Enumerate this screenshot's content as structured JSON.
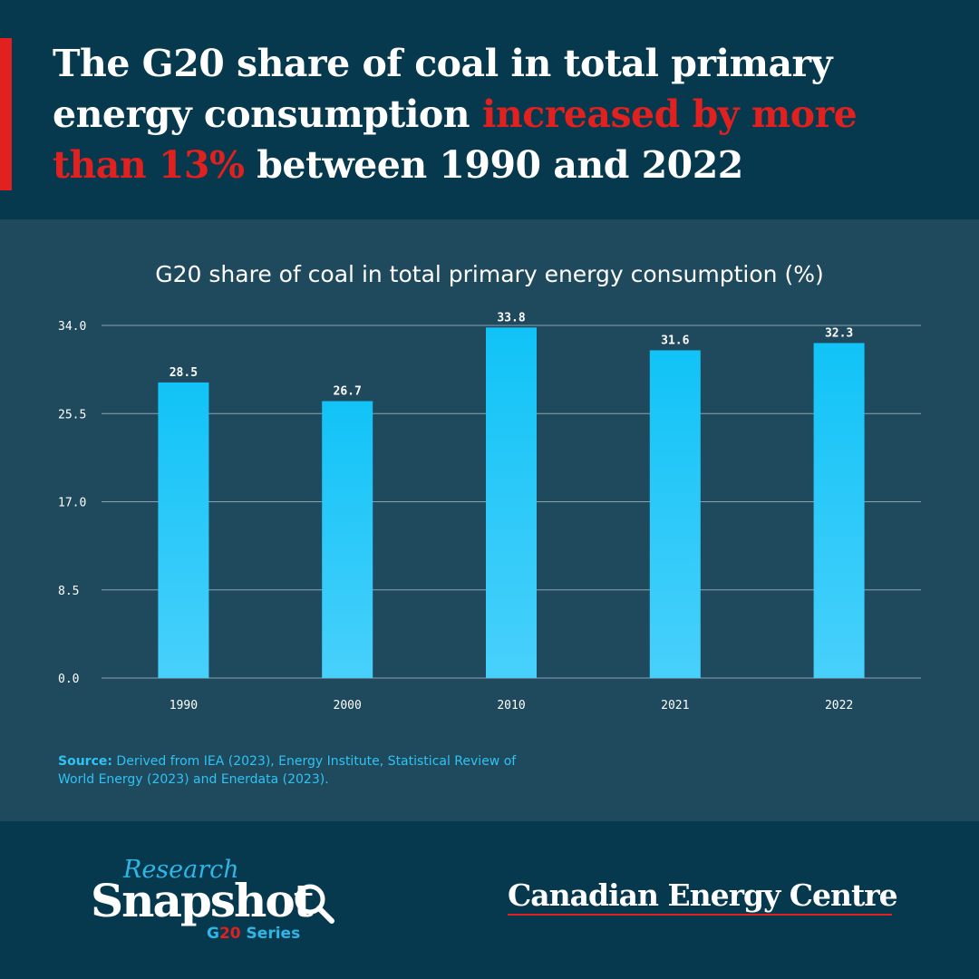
{
  "header": {
    "headline_part1": "The G20 share of coal in total primary energy consumption ",
    "headline_highlight": "increased by more than 13%",
    "headline_part2": " between 1990 and 2022"
  },
  "chart_data": {
    "type": "bar",
    "title": "G20 share of coal in total primary energy consumption (%)",
    "categories": [
      "1990",
      "2000",
      "2010",
      "2021",
      "2022"
    ],
    "values": [
      28.5,
      26.7,
      33.8,
      31.6,
      32.3
    ],
    "value_labels": [
      "28.5",
      "26.7",
      "33.8",
      "31.6",
      "32.3"
    ],
    "ylim": [
      0,
      34.0
    ],
    "yticks": [
      0.0,
      8.5,
      17.0,
      25.5,
      34.0
    ],
    "ytick_labels": [
      "0.0",
      "8.5",
      "17.0",
      "25.5",
      "34.0"
    ],
    "xlabel": "",
    "ylabel": "",
    "grid": true,
    "bar_color_top": "#11c3f7",
    "bar_color_bottom": "#48d0fb"
  },
  "source": {
    "label": "Source:",
    "text": " Derived from IEA (2023), Energy Institute, Statistical Review of World Energy (2023) and Enerdata (2023)."
  },
  "footer": {
    "research_label": "Research",
    "snapshot_label": "Snapshot",
    "series_prefix": "G",
    "series_number": "20",
    "series_suffix": " Series",
    "brand_name": "Canadian Energy Centre"
  },
  "colors": {
    "background": "#06394d",
    "panel": "#1f4a5e",
    "accent": "#e0211f",
    "bar": "#11c3f7"
  }
}
